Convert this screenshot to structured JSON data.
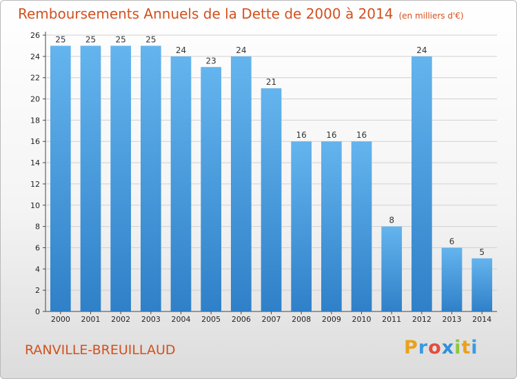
{
  "header": {
    "title": "Remboursements Annuels de la Dette de 2000 à 2014",
    "unit": "(en milliers d'€)"
  },
  "footer": {
    "commune": "RANVILLE-BREUILLAUD",
    "logo_letters": [
      "P",
      "r",
      "o",
      "x",
      "i",
      "t",
      "i"
    ],
    "logo_colors": [
      "#e8a21c",
      "#3a9be0",
      "#e24d3c",
      "#2f8fdc",
      "#8dc63f",
      "#e8a21c",
      "#3a9be0"
    ]
  },
  "chart_data": {
    "type": "bar",
    "title": "Remboursements Annuels de la Dette de 2000 à 2014",
    "ylabel": "",
    "xlabel": "",
    "categories": [
      "2000",
      "2001",
      "2002",
      "2003",
      "2004",
      "2005",
      "2006",
      "2007",
      "2008",
      "2009",
      "2010",
      "2011",
      "2012",
      "2013",
      "2014"
    ],
    "values": [
      25,
      25,
      25,
      25,
      24,
      23,
      24,
      21,
      16,
      16,
      16,
      8,
      24,
      6,
      5
    ],
    "ylim": [
      0,
      26
    ],
    "yticks": [
      0,
      2,
      4,
      6,
      8,
      10,
      12,
      14,
      16,
      18,
      20,
      22,
      24,
      26
    ],
    "grid": true,
    "colors": {
      "bar_top": "#64b4ee",
      "bar_bottom": "#2f80c8",
      "title": "#d2501e"
    }
  }
}
